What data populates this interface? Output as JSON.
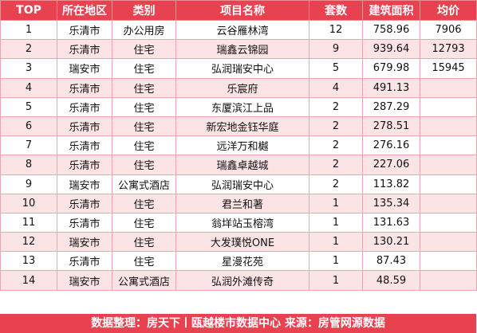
{
  "header": {
    "top": "TOP",
    "area": "所在地区",
    "type": "类别",
    "name": "项目名称",
    "units": "套数",
    "size": "建筑面积",
    "price": "均价"
  },
  "rows": [
    {
      "rank": "1",
      "area": "乐清市",
      "type": "办公用房",
      "name": "云谷雁林湾",
      "units": "12",
      "size": "758.96",
      "price": "7906"
    },
    {
      "rank": "2",
      "area": "乐清市",
      "type": "住宅",
      "name": "瑞鑫云锦园",
      "units": "9",
      "size": "939.64",
      "price": "12793"
    },
    {
      "rank": "3",
      "area": "瑞安市",
      "type": "住宅",
      "name": "弘润瑞安中心",
      "units": "5",
      "size": "679.98",
      "price": "15945"
    },
    {
      "rank": "4",
      "area": "乐清市",
      "type": "住宅",
      "name": "乐宸府",
      "units": "4",
      "size": "491.13",
      "price": ""
    },
    {
      "rank": "5",
      "area": "乐清市",
      "type": "住宅",
      "name": "东厦滨江上品",
      "units": "2",
      "size": "287.29",
      "price": ""
    },
    {
      "rank": "6",
      "area": "乐清市",
      "type": "住宅",
      "name": "新宏地金钰华庭",
      "units": "2",
      "size": "278.51",
      "price": ""
    },
    {
      "rank": "7",
      "area": "乐清市",
      "type": "住宅",
      "name": "远洋万和樾",
      "units": "2",
      "size": "276.16",
      "price": ""
    },
    {
      "rank": "8",
      "area": "乐清市",
      "type": "住宅",
      "name": "瑞鑫卓越城",
      "units": "2",
      "size": "227.06",
      "price": ""
    },
    {
      "rank": "9",
      "area": "瑞安市",
      "type": "公寓式酒店",
      "name": "弘润瑞安中心",
      "units": "2",
      "size": "113.82",
      "price": ""
    },
    {
      "rank": "10",
      "area": "乐清市",
      "type": "住宅",
      "name": "君兰和著",
      "units": "1",
      "size": "135.34",
      "price": ""
    },
    {
      "rank": "11",
      "area": "乐清市",
      "type": "住宅",
      "name": "翁垟站玉榕湾",
      "units": "1",
      "size": "131.63",
      "price": ""
    },
    {
      "rank": "12",
      "area": "瑞安市",
      "type": "住宅",
      "name": "大发璞悦ONE",
      "units": "1",
      "size": "130.21",
      "price": ""
    },
    {
      "rank": "13",
      "area": "乐清市",
      "type": "住宅",
      "name": "星漫花苑",
      "units": "1",
      "size": "87.43",
      "price": ""
    },
    {
      "rank": "14",
      "area": "瑞安市",
      "type": "公寓式酒店",
      "name": "弘润外滩传奇",
      "units": "1",
      "size": "48.59",
      "price": ""
    }
  ],
  "footer": "数据整理：房天下丨瓯越楼市数据中心   来源：房管网源数据",
  "colors": {
    "accent": "#e8414f",
    "alt_row": "#fbe3e6"
  }
}
